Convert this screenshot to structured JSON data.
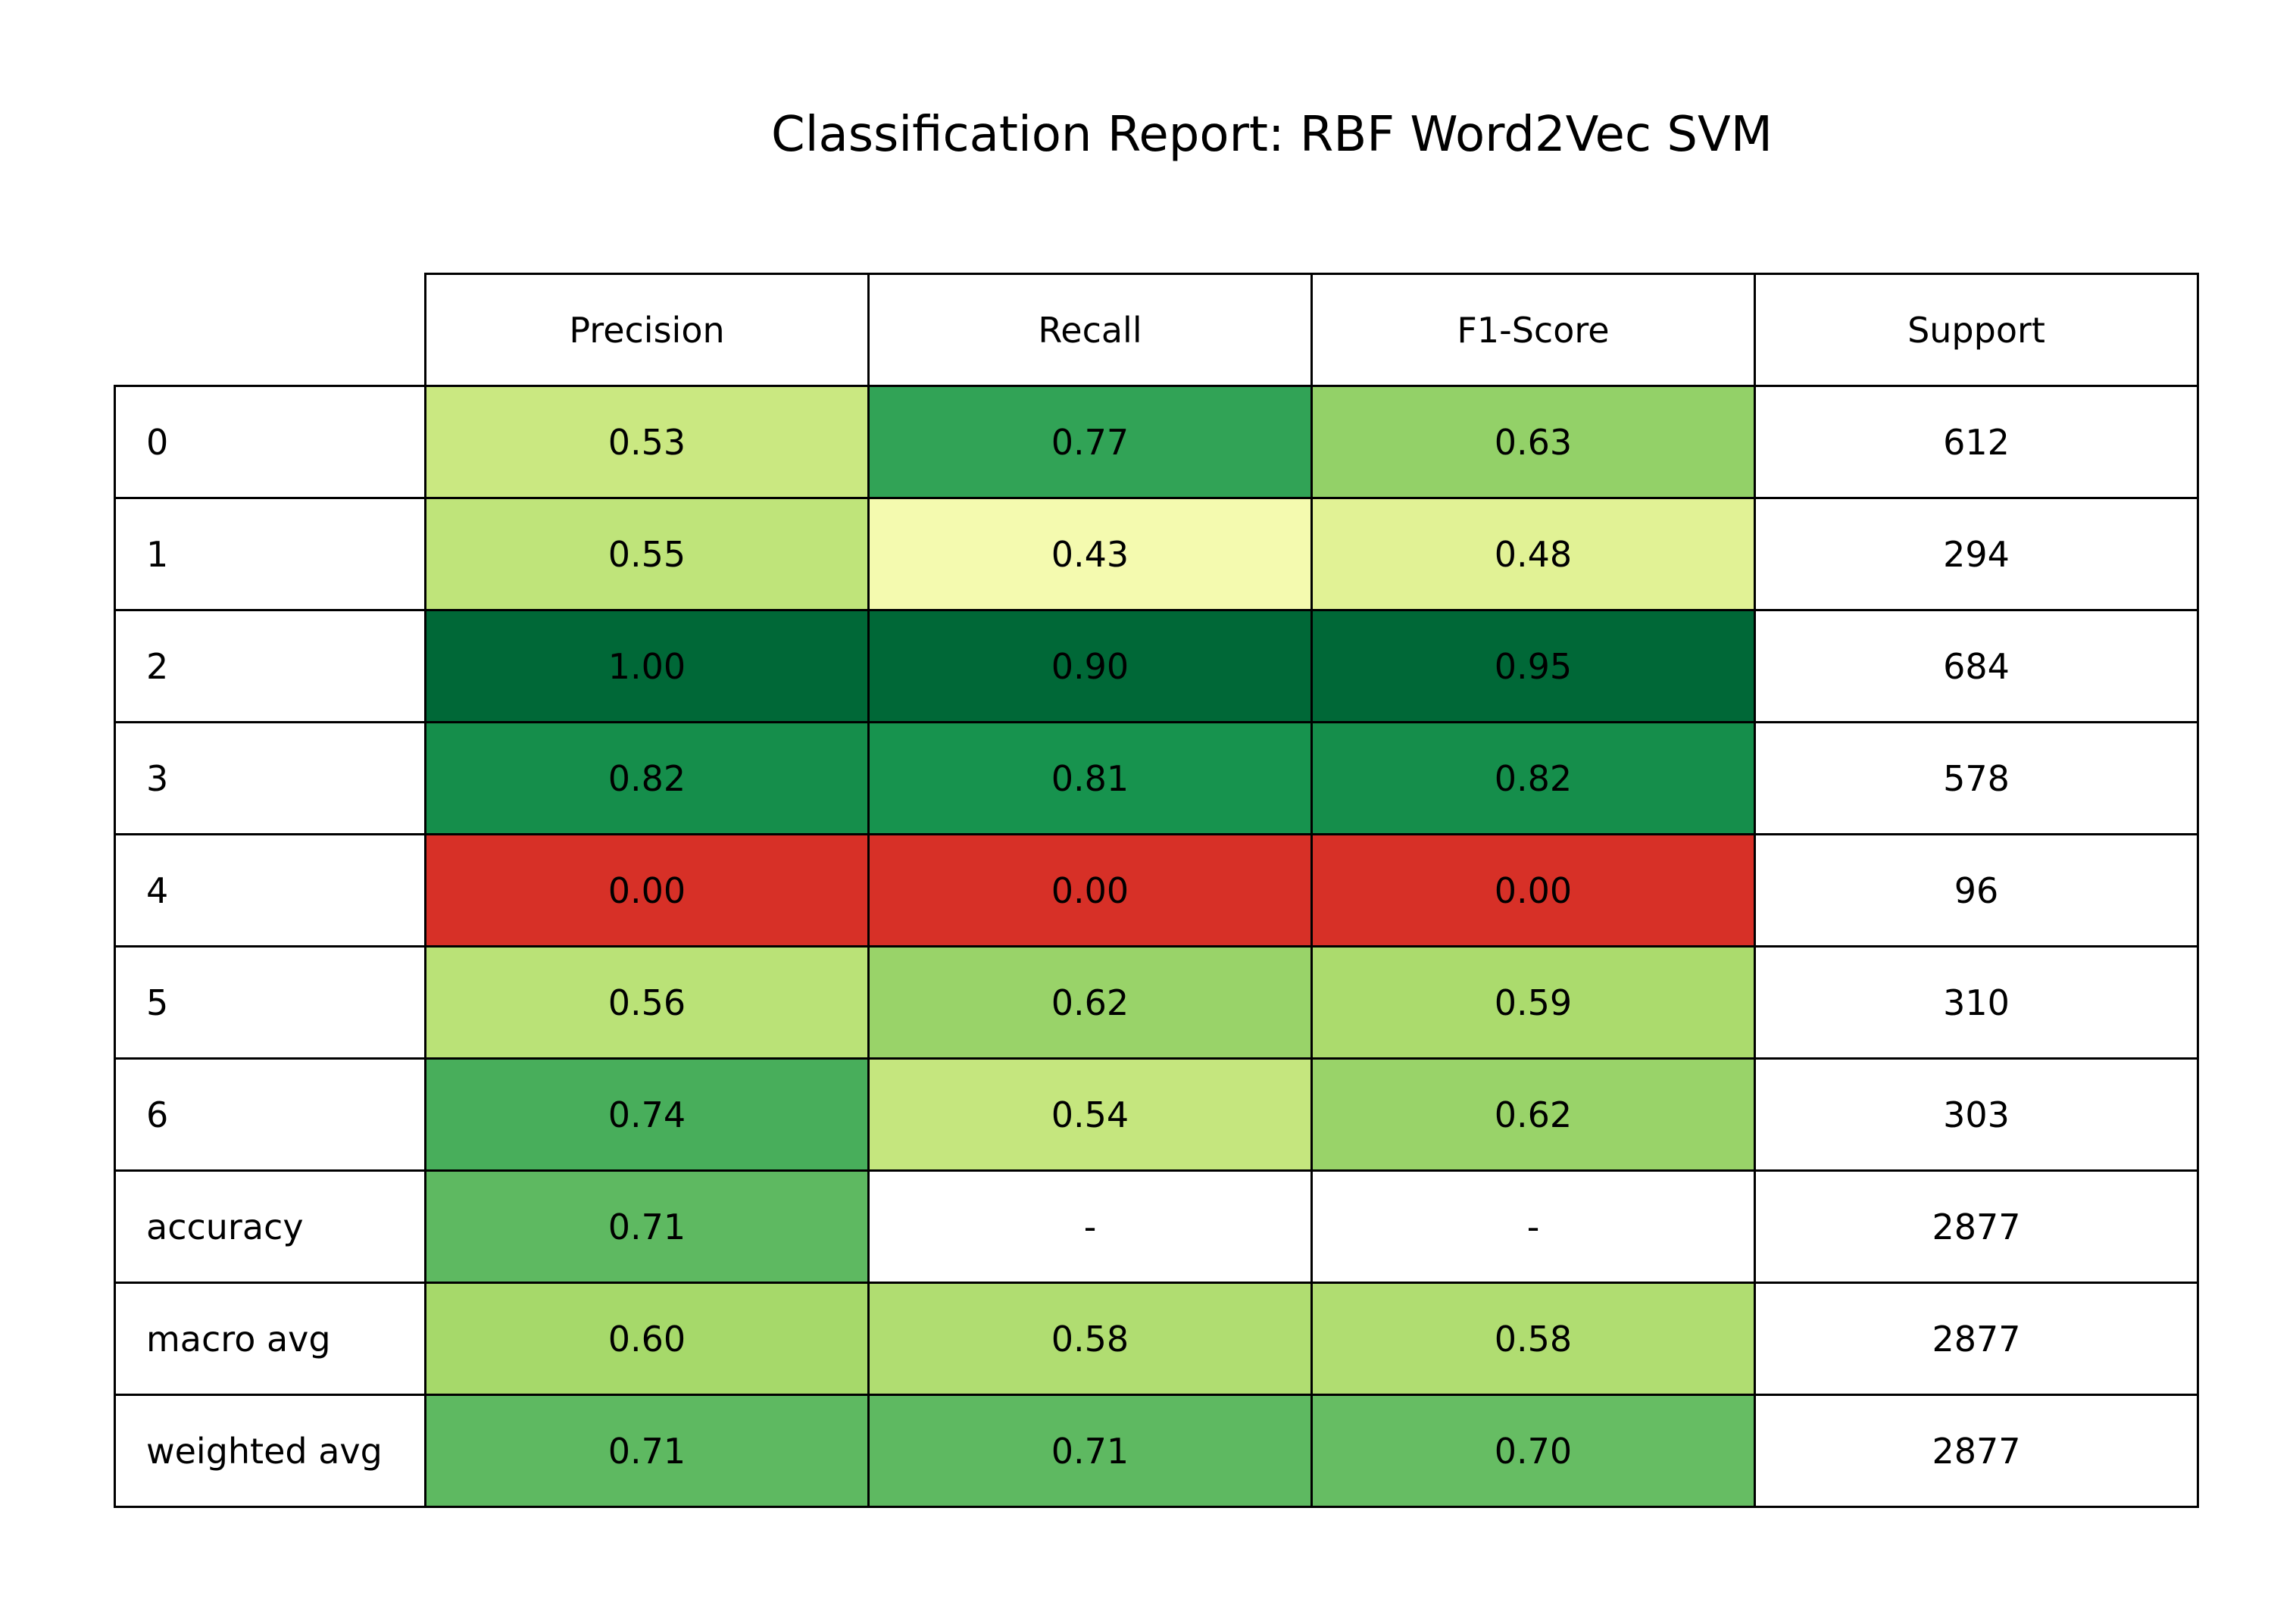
{
  "chart_data": {
    "type": "table",
    "title": "Classification Report: RBF Word2Vec SVM",
    "columns": [
      "Precision",
      "Recall",
      "F1-Score",
      "Support"
    ],
    "rows": [
      {
        "label": "0",
        "precision": "0.53",
        "recall": "0.77",
        "f1": "0.63",
        "support": "612"
      },
      {
        "label": "1",
        "precision": "0.55",
        "recall": "0.43",
        "f1": "0.48",
        "support": "294"
      },
      {
        "label": "2",
        "precision": "1.00",
        "recall": "0.90",
        "f1": "0.95",
        "support": "684"
      },
      {
        "label": "3",
        "precision": "0.82",
        "recall": "0.81",
        "f1": "0.82",
        "support": "578"
      },
      {
        "label": "4",
        "precision": "0.00",
        "recall": "0.00",
        "f1": "0.00",
        "support": "96"
      },
      {
        "label": "5",
        "precision": "0.56",
        "recall": "0.62",
        "f1": "0.59",
        "support": "310"
      },
      {
        "label": "6",
        "precision": "0.74",
        "recall": "0.54",
        "f1": "0.62",
        "support": "303"
      },
      {
        "label": "accuracy",
        "precision": "0.71",
        "recall": "-",
        "f1": "-",
        "support": "2877"
      },
      {
        "label": "macro avg",
        "precision": "0.60",
        "recall": "0.58",
        "f1": "0.58",
        "support": "2877"
      },
      {
        "label": "weighted avg",
        "precision": "0.71",
        "recall": "0.71",
        "f1": "0.70",
        "support": "2877"
      }
    ],
    "colormap": "RdYlGn",
    "color_range": [
      0,
      1
    ]
  },
  "colors": {
    "cell_border": "#000000",
    "plain_cell": "#ffffff",
    "text": "#000000"
  }
}
